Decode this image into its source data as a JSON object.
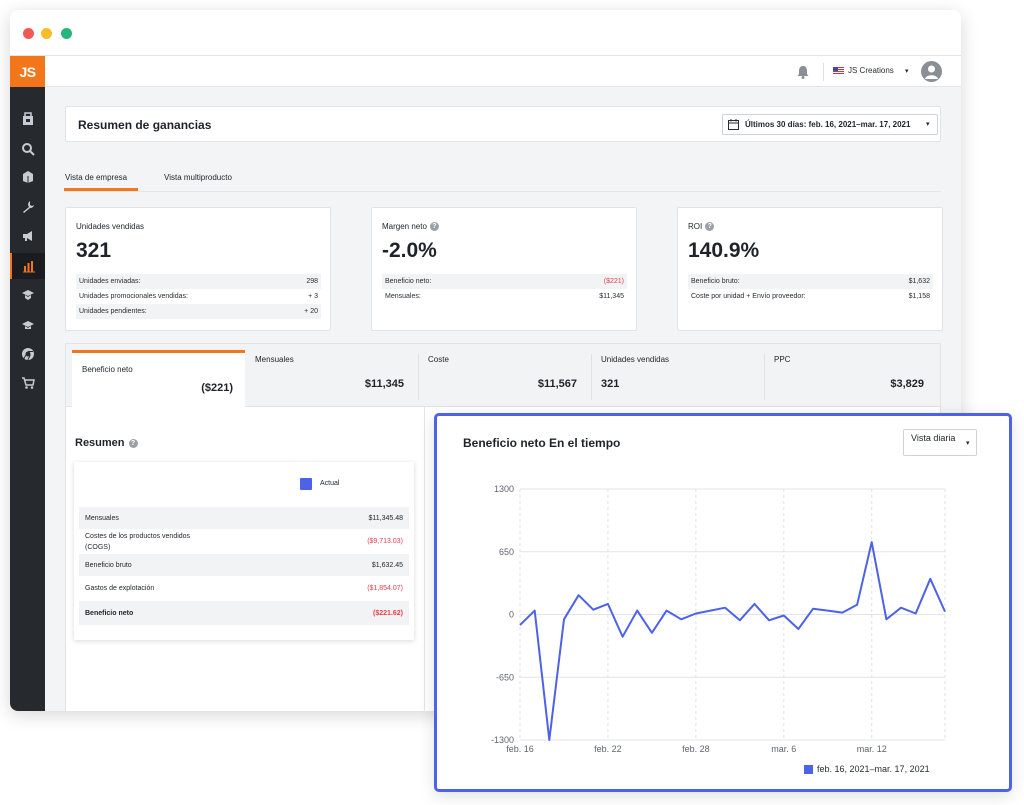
{
  "app": {
    "logo": "JS"
  },
  "topbar": {
    "account_name": "JS Creations",
    "caret": "▾"
  },
  "header": {
    "title": "Resumen de ganancias",
    "date_range": "Últimos 30 días: feb. 16, 2021–mar. 17, 2021",
    "caret": "▾"
  },
  "tabs": [
    {
      "label": "Vista de empresa",
      "active": true
    },
    {
      "label": "Vista multiproducto",
      "active": false
    }
  ],
  "cards": [
    {
      "label": "Unidades vendidas",
      "value": "321",
      "rows": [
        {
          "label": "Unidades enviadas:",
          "value": "298"
        },
        {
          "label": "Unidades promocionales vendidas:",
          "value": "+ 3"
        },
        {
          "label": "Unidades pendientes:",
          "value": "+ 20"
        }
      ]
    },
    {
      "label": "Margen neto",
      "value": "-2.0%",
      "rows": [
        {
          "label": "Beneficio neto:",
          "value": "($221)"
        },
        {
          "label": "Mensuales:",
          "value": "$11,345"
        }
      ]
    },
    {
      "label": "ROI",
      "value": "140.9%",
      "rows": [
        {
          "label": "Beneficio bruto:",
          "value": "$1,632"
        },
        {
          "label": "Coste por unidad + Envío proveedor:",
          "value": "$1,158"
        }
      ]
    }
  ],
  "metrics": [
    {
      "label": "Beneficio neto",
      "value": "($221)"
    },
    {
      "label": "Mensuales",
      "value": "$11,345"
    },
    {
      "label": "Coste",
      "value": "$11,567"
    },
    {
      "label": "Unidades vendidas",
      "value": "321"
    },
    {
      "label": "PPC",
      "value": "$3,829"
    }
  ],
  "summary": {
    "title": "Resumen",
    "legend": "Actual",
    "rows": [
      {
        "label": "Mensuales",
        "value": "$11,345.48"
      },
      {
        "label": "Costes de los productos vendidos (COGS)",
        "value": "($9,713.03)"
      },
      {
        "label": "Beneficio bruto",
        "value": "$1,632.45"
      },
      {
        "label": "Gastos de explotación",
        "value": "($1,854.07)"
      },
      {
        "label": "Beneficio neto",
        "value": "($221.62)"
      }
    ]
  },
  "chart": {
    "title": "Beneficio neto En el tiempo",
    "view_select": "Vista diaria",
    "caret": "▾"
  },
  "colors": {
    "accent": "#f3761b",
    "series": "#4d62e6",
    "negative": "#e2404f",
    "sidebar": "#26292e"
  },
  "chart_data": {
    "type": "line",
    "title": "Beneficio neto En el tiempo",
    "x_tick_labels": [
      "feb. 16",
      "feb. 22",
      "feb. 28",
      "mar. 6",
      "mar. 12"
    ],
    "y_tick_labels": [
      "1300",
      "650",
      "0",
      "-650",
      "-1300"
    ],
    "ylim": [
      -1300,
      1300
    ],
    "grid": true,
    "legend_position": "bottom-right",
    "series": [
      {
        "name": "feb. 16, 2021–mar. 17, 2021",
        "x": [
          "feb. 16",
          "feb. 17",
          "feb. 18",
          "feb. 19",
          "feb. 20",
          "feb. 21",
          "feb. 22",
          "feb. 23",
          "feb. 24",
          "feb. 25",
          "feb. 26",
          "feb. 27",
          "feb. 28",
          "mar. 1",
          "mar. 2",
          "mar. 3",
          "mar. 4",
          "mar. 5",
          "mar. 6",
          "mar. 7",
          "mar. 8",
          "mar. 9",
          "mar. 10",
          "mar. 11",
          "mar. 12",
          "mar. 13",
          "mar. 14",
          "mar. 15",
          "mar. 16",
          "mar. 17"
        ],
        "values": [
          -110,
          40,
          -1300,
          -50,
          200,
          50,
          110,
          -230,
          40,
          -190,
          40,
          -50,
          10,
          40,
          70,
          -60,
          110,
          -60,
          -10,
          -150,
          60,
          40,
          20,
          100,
          750,
          -50,
          70,
          10,
          370,
          30
        ]
      }
    ]
  }
}
